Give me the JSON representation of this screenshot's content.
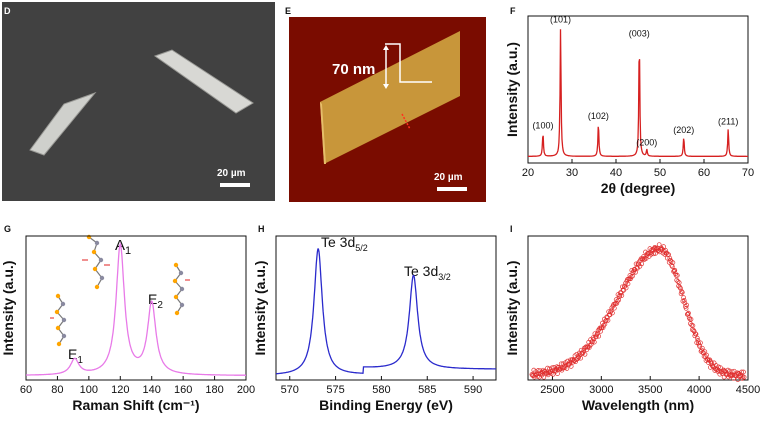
{
  "panels": {
    "D": {
      "label": "D",
      "scalebar": "20 µm"
    },
    "E": {
      "label": "E",
      "scalebar": "20 µm",
      "height_annotation": "70 nm"
    }
  },
  "chart_data": [
    {
      "panel": "F",
      "type": "line",
      "color": "#d62020",
      "xlabel": "2θ (degree)",
      "ylabel": "Intensity (a.u.)",
      "xlim": [
        20,
        70
      ],
      "xticks": [
        "20",
        "30",
        "40",
        "50",
        "60",
        "70"
      ],
      "grid": false,
      "peaks": [
        {
          "x": 23.4,
          "y": 0.17,
          "label": "(100)"
        },
        {
          "x": 27.4,
          "y": 0.93,
          "label": "(101)"
        },
        {
          "x": 36.0,
          "y": 0.24,
          "label": "(102)"
        },
        {
          "x": 45.3,
          "y": 0.83,
          "label": "(003)"
        },
        {
          "x": 47.0,
          "y": 0.05,
          "label": "(200)"
        },
        {
          "x": 55.4,
          "y": 0.14,
          "label": "(202)"
        },
        {
          "x": 65.5,
          "y": 0.2,
          "label": "(211)"
        }
      ]
    },
    {
      "panel": "G",
      "type": "line",
      "color": "#e87ae8",
      "xlabel": "Raman Shift (cm⁻¹)",
      "ylabel": "Intensity (a.u.)",
      "xlim": [
        60,
        200
      ],
      "xticks": [
        "60",
        "80",
        "100",
        "120",
        "140",
        "160",
        "180",
        "200"
      ],
      "grid": false,
      "peaks": [
        {
          "x": 91,
          "y": 0.12,
          "label": "E1"
        },
        {
          "x": 120,
          "y": 1.0,
          "label": "A1"
        },
        {
          "x": 140,
          "y": 0.55,
          "label": "E2"
        }
      ]
    },
    {
      "panel": "H",
      "type": "line",
      "color": "#2a2acc",
      "xlabel": "Binding Energy (eV)",
      "ylabel": "Intensity (a.u.)",
      "xlim": [
        568.5,
        592.5
      ],
      "xticks": [
        "570",
        "575",
        "580",
        "585",
        "590"
      ],
      "grid": false,
      "peaks": [
        {
          "x": 573.1,
          "y": 1.0,
          "label": "Te 3d5/2"
        },
        {
          "x": 583.5,
          "y": 0.74,
          "label": "Te 3d3/2"
        }
      ]
    },
    {
      "panel": "I",
      "type": "scatter",
      "color": "#e03030",
      "xlabel": "Wavelength (nm)",
      "ylabel": "Intensity (a.u.)",
      "xlim": [
        2250,
        4500
      ],
      "xticks": [
        "2500",
        "3000",
        "3500",
        "4000",
        "4500"
      ],
      "grid": false,
      "peak_x": 3600,
      "peak_y": 1.0
    }
  ],
  "labels": {
    "F": "F",
    "G": "G",
    "H": "H",
    "I": "I",
    "G_a": "A",
    "G_a_sub": "1",
    "G_e1": "E",
    "G_e1_sub": "1",
    "G_e2": "E",
    "G_e2_sub": "2",
    "H_p1": "Te 3d",
    "H_p1_sub": "5/2",
    "H_p2": "Te 3d",
    "H_p2_sub": "3/2"
  }
}
